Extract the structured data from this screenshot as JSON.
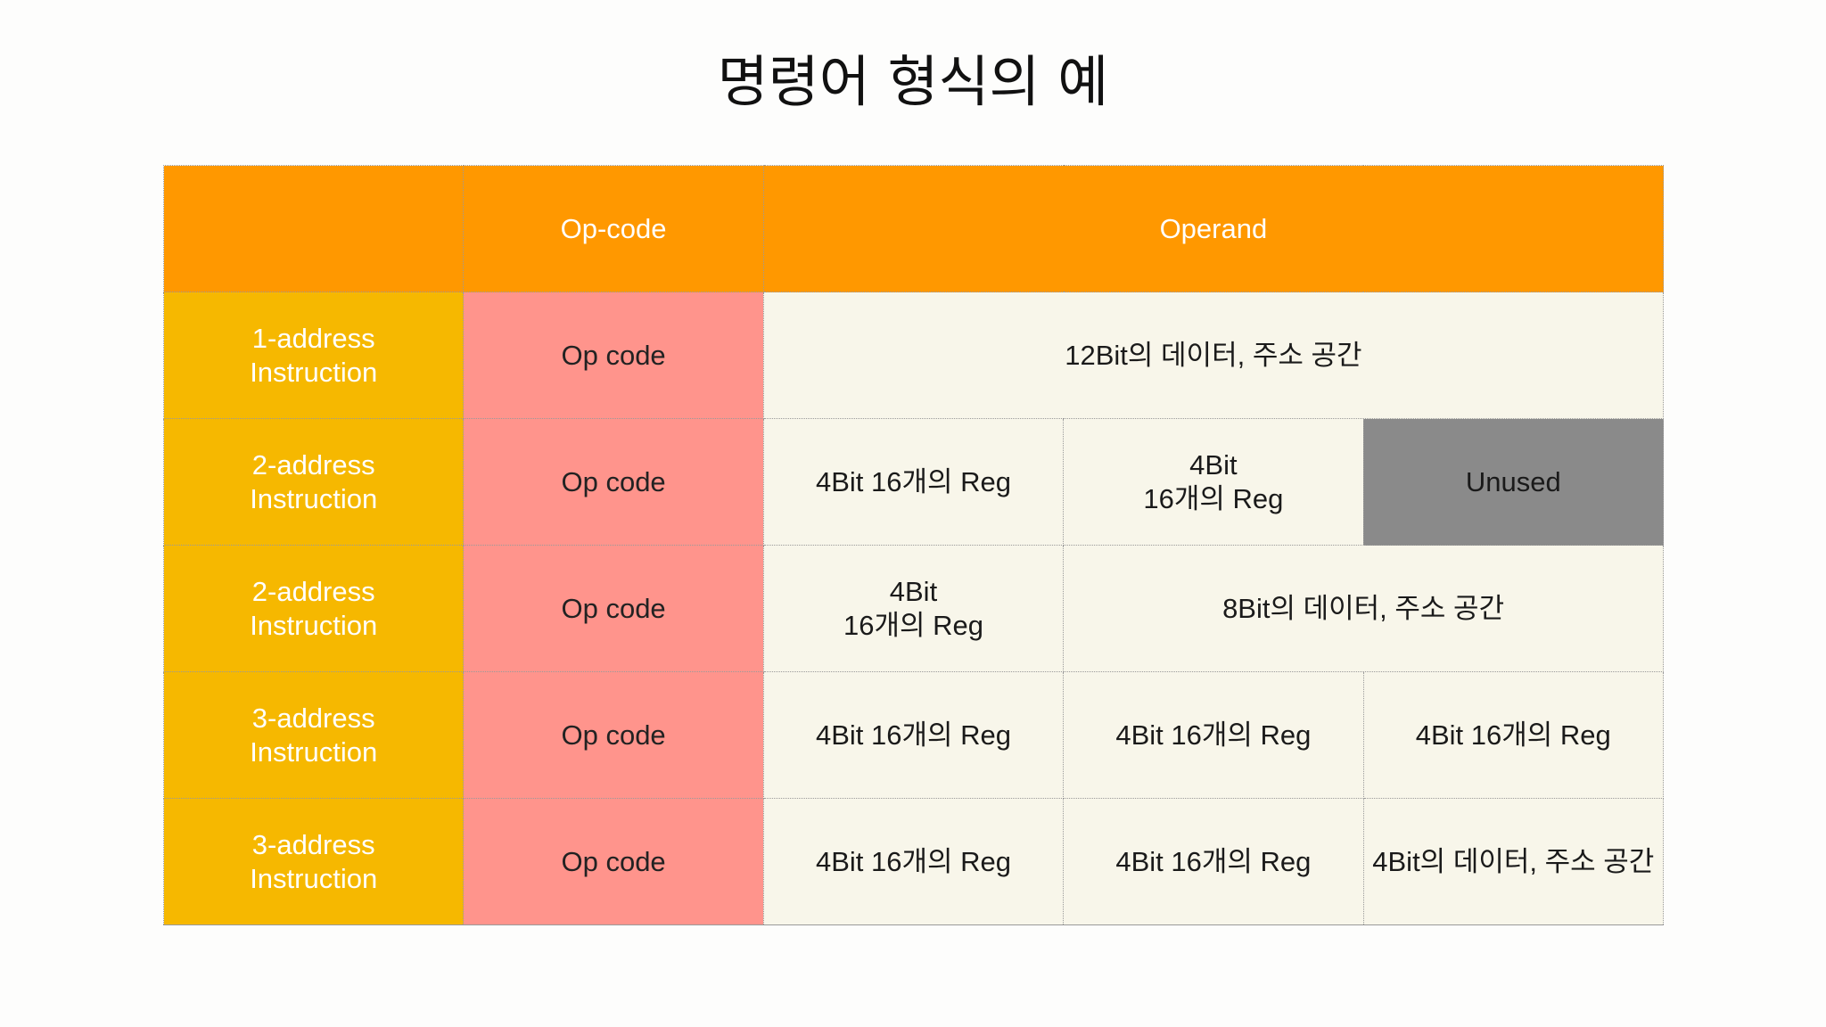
{
  "title": "명령어 형식의 예",
  "header": {
    "blank": "",
    "opcode": "Op-code",
    "operand": "Operand"
  },
  "rows": [
    {
      "label": "1-address\nInstruction",
      "opcode": "Op code",
      "fields": [
        "12Bit의 데이터, 주소 공간"
      ]
    },
    {
      "label": "2-address\nInstruction",
      "opcode": "Op code",
      "fields": [
        "4Bit  16개의 Reg",
        "4Bit\n16개의 Reg",
        "Unused"
      ]
    },
    {
      "label": "2-address\nInstruction",
      "opcode": "Op code",
      "fields": [
        "4Bit\n16개의 Reg",
        "8Bit의 데이터, 주소 공간"
      ]
    },
    {
      "label": "3-address\nInstruction",
      "opcode": "Op code",
      "fields": [
        "4Bit  16개의 Reg",
        "4Bit  16개의 Reg",
        "4Bit  16개의 Reg"
      ]
    },
    {
      "label": "3-address\nInstruction",
      "opcode": "Op code",
      "fields": [
        "4Bit  16개의 Reg",
        "4Bit  16개의 Reg",
        "4Bit의 데이터,  주소 공간"
      ]
    }
  ],
  "colors": {
    "header": "#ff9800",
    "row_label": "#f6b800",
    "opcode_cell": "#ff948c",
    "operand_cell": "#f8f6ea",
    "unused_cell": "#8a8a8a"
  }
}
